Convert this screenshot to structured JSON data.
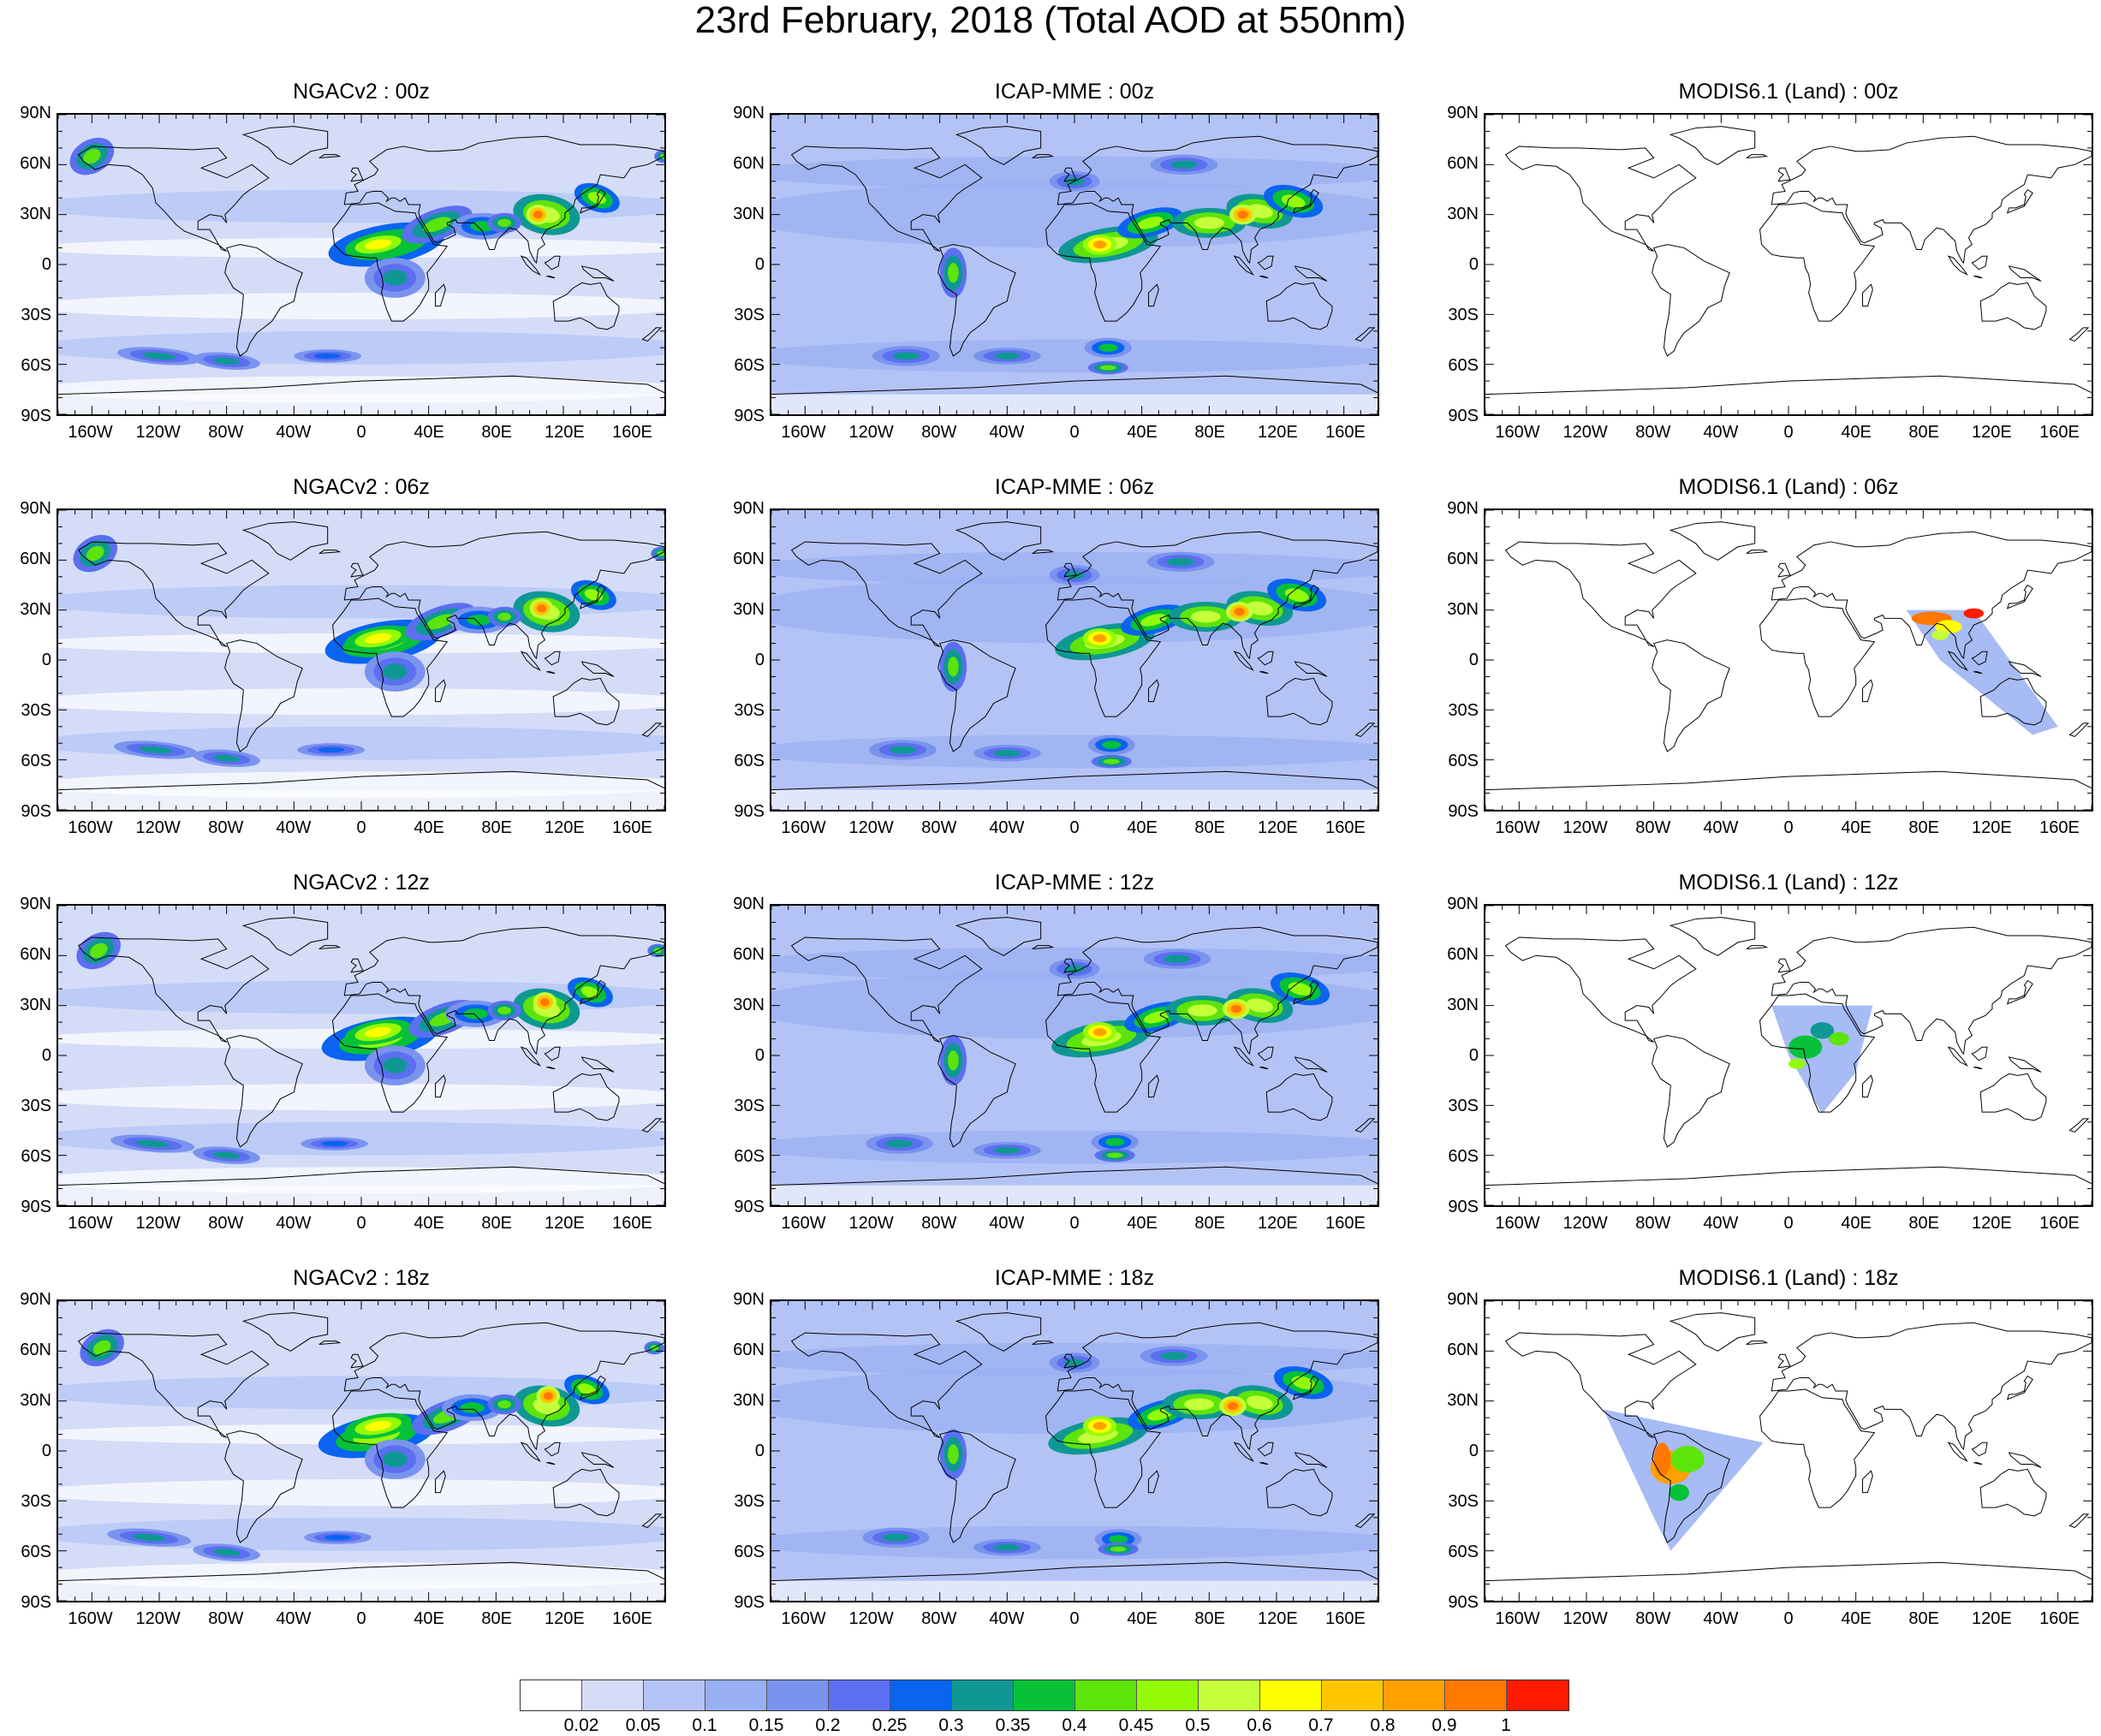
{
  "title": "23rd February, 2018 (Total AOD at 550nm)",
  "lat_labels": [
    "90N",
    "60N",
    "30N",
    "0",
    "30S",
    "60S",
    "90S"
  ],
  "lon_labels": [
    "160W",
    "120W",
    "80W",
    "40W",
    "0",
    "40E",
    "80E",
    "120E",
    "160E"
  ],
  "panels": [
    {
      "title": "NGACv2 : 00z",
      "model": "ngac",
      "time": "00"
    },
    {
      "title": "ICAP-MME : 00z",
      "model": "icap",
      "time": "00"
    },
    {
      "title": "MODIS6.1 (Land) : 00z",
      "model": "modis",
      "time": "00"
    },
    {
      "title": "NGACv2 : 06z",
      "model": "ngac",
      "time": "06"
    },
    {
      "title": "ICAP-MME : 06z",
      "model": "icap",
      "time": "06"
    },
    {
      "title": "MODIS6.1 (Land) : 06z",
      "model": "modis",
      "time": "06"
    },
    {
      "title": "NGACv2 : 12z",
      "model": "ngac",
      "time": "12"
    },
    {
      "title": "ICAP-MME : 12z",
      "model": "icap",
      "time": "12"
    },
    {
      "title": "MODIS6.1 (Land) : 12z",
      "model": "modis",
      "time": "12"
    },
    {
      "title": "NGACv2 : 18z",
      "model": "ngac",
      "time": "18"
    },
    {
      "title": "ICAP-MME : 18z",
      "model": "icap",
      "time": "18"
    },
    {
      "title": "MODIS6.1 (Land) : 18z",
      "model": "modis",
      "time": "18"
    }
  ],
  "colorbar": {
    "colors": [
      "#ffffff",
      "#d4dcf8",
      "#b4c3f6",
      "#98aff2",
      "#7a93ee",
      "#5b6ff0",
      "#0a64f0",
      "#0f9893",
      "#07c139",
      "#5ce40b",
      "#93fb08",
      "#c4ff3a",
      "#ffff00",
      "#ffc600",
      "#ffa000",
      "#ff7800",
      "#ff1a00"
    ],
    "labels": [
      "0.02",
      "0.05",
      "0.1",
      "0.15",
      "0.2",
      "0.25",
      "0.3",
      "0.35",
      "0.4",
      "0.45",
      "0.5",
      "0.6",
      "0.7",
      "0.8",
      "0.9",
      "1"
    ]
  }
}
